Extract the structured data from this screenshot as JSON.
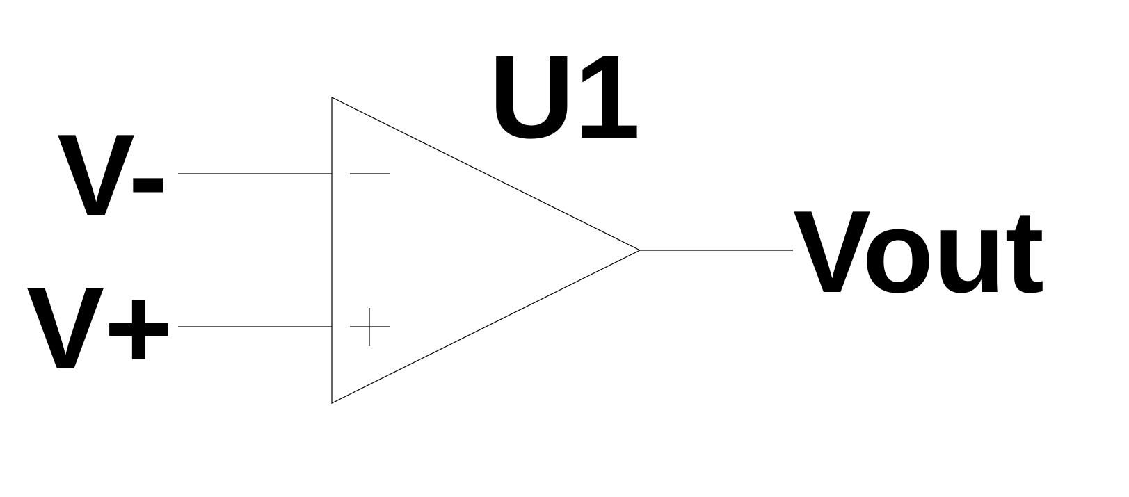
{
  "component": {
    "designator": "U1",
    "type": "op-amp"
  },
  "pins": {
    "inverting": {
      "label": "V-",
      "symbol": "minus"
    },
    "non_inverting": {
      "label": "V+",
      "symbol": "plus"
    },
    "output": {
      "label": "Vout"
    }
  },
  "colors": {
    "stroke": "#000000",
    "background": "#ffffff"
  }
}
